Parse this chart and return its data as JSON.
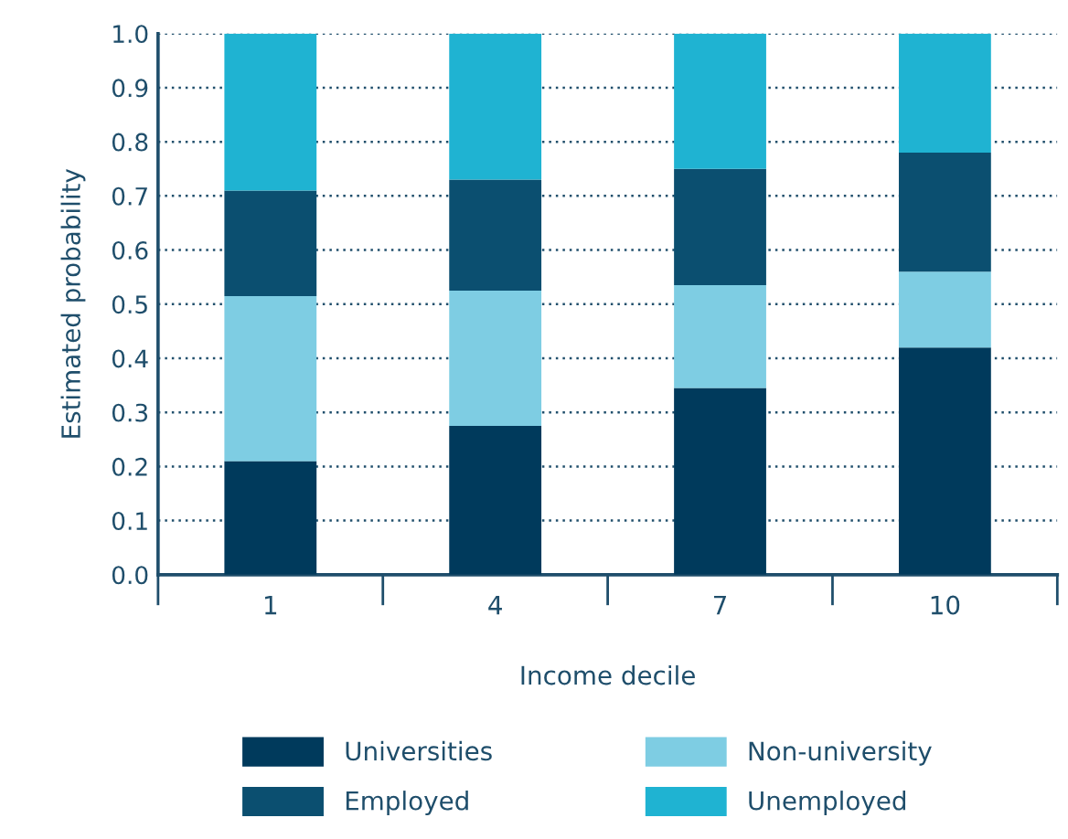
{
  "chart_data": {
    "type": "bar",
    "stacked": true,
    "xlabel": "Income decile",
    "ylabel": "Estimated probability",
    "categories": [
      "1",
      "4",
      "7",
      "10"
    ],
    "series": [
      {
        "name": "Universities",
        "color": "#003a5c",
        "values": [
          0.21,
          0.275,
          0.345,
          0.42
        ]
      },
      {
        "name": "Non-university",
        "color": "#7ecde3",
        "values": [
          0.305,
          0.25,
          0.19,
          0.14
        ]
      },
      {
        "name": "Employed",
        "color": "#0b4f70",
        "values": [
          0.195,
          0.205,
          0.215,
          0.22
        ]
      },
      {
        "name": "Unemployed",
        "color": "#1fb3d2",
        "values": [
          0.29,
          0.27,
          0.25,
          0.22
        ]
      }
    ],
    "ylim": [
      0,
      1
    ],
    "yticks": [
      {
        "value": 0,
        "label": "0.0"
      },
      0.1,
      0.2,
      0.3,
      0.4,
      0.5,
      0.6,
      0.7,
      0.8,
      0.9,
      {
        "value": 1,
        "label": "1.0"
      }
    ],
    "grid": "y",
    "legend": "bottom"
  }
}
